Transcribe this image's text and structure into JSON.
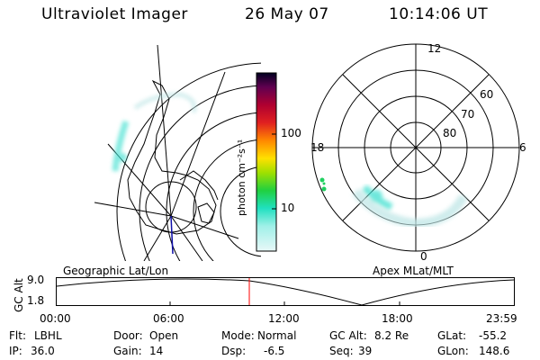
{
  "header": {
    "title": "Ultraviolet Imager",
    "date": "26 May 07",
    "time": "10:14:06 UT"
  },
  "colorbar": {
    "unit_label": "photon cm⁻²s⁻¹",
    "ticks": [
      "100",
      "10"
    ]
  },
  "polar": {
    "mlt_labels": [
      "12",
      "18",
      "6",
      "0"
    ],
    "lat_labels": [
      "60",
      "70",
      "80"
    ]
  },
  "map_labels": {
    "left": "Geographic Lat/Lon",
    "right": "Apex MLat/MLT"
  },
  "altitude_plot": {
    "ylabel": "GC Alt",
    "y_ticks": [
      "9.0",
      "1.8"
    ],
    "x_ticks": [
      "00:00",
      "06:00",
      "12:00",
      "18:00",
      "23:59"
    ]
  },
  "info": {
    "flt_label": "Flt:",
    "flt_value": "LBHL",
    "ip_label": "IP:",
    "ip_value": "36.0",
    "door_label": "Door:",
    "door_value": "Open",
    "gain_label": "Gain:",
    "gain_value": "14",
    "mode_label": "Mode:",
    "mode_value": "Normal",
    "dsp_label": "Dsp:",
    "dsp_value": "-6.5",
    "gcalt_label": "GC Alt:",
    "gcalt_value": "8.2 Re",
    "seq_label": "Seq:",
    "seq_value": "39",
    "glat_label": "GLat:",
    "glat_value": "-55.2",
    "glon_label": "GLon:",
    "glon_value": "148.6"
  },
  "colors": {
    "aurora": "#40e0d0",
    "marker": "#ff0000",
    "track": "#000000"
  }
}
